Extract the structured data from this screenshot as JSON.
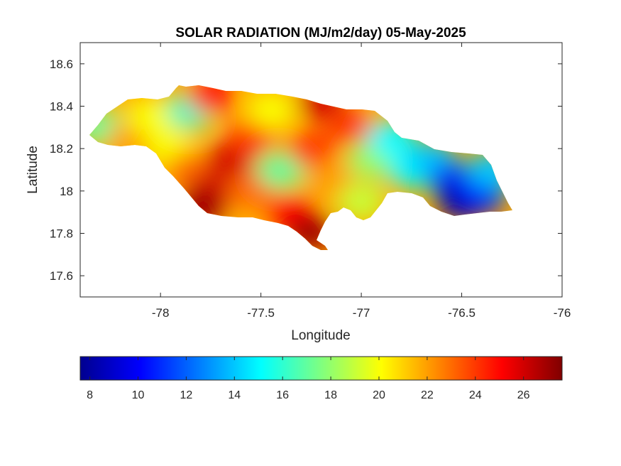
{
  "chart_data": {
    "type": "heatmap",
    "title": "SOLAR RADIATION (MJ/m2/day) 05-May-2025",
    "xlabel": "Longitude",
    "ylabel": "Latitude",
    "xlim": [
      -78.4,
      -76
    ],
    "ylim": [
      17.5,
      18.7
    ],
    "x_ticks": [
      -78,
      -77.5,
      -77,
      -76.5,
      -76
    ],
    "y_ticks": [
      17.6,
      17.8,
      18,
      18.2,
      18.4,
      18.6
    ],
    "x_tick_labels": [
      "-78",
      "-77.5",
      "-77",
      "-76.5",
      "-76"
    ],
    "y_tick_labels": [
      "17.6",
      "17.8",
      "18",
      "18.2",
      "18.4",
      "18.6"
    ],
    "colormap": "jet",
    "colorbar": {
      "orientation": "horizontal",
      "placement": "below",
      "range": [
        7.6,
        27.6
      ],
      "ticks": [
        8,
        10,
        12,
        14,
        16,
        18,
        20,
        22,
        24,
        26
      ],
      "tick_labels": [
        "8",
        "10",
        "12",
        "14",
        "16",
        "18",
        "20",
        "22",
        "24",
        "26"
      ],
      "stops": [
        "#00008f",
        "#0000ff",
        "#00ffff",
        "#ffff00",
        "#ff0000",
        "#800000"
      ]
    },
    "regions": [
      {
        "lon": -78.3,
        "lat": 18.3,
        "value": 17
      },
      {
        "lon": -78.15,
        "lat": 18.25,
        "value": 22
      },
      {
        "lon": -78.05,
        "lat": 18.35,
        "value": 20
      },
      {
        "lon": -77.95,
        "lat": 18.2,
        "value": 20
      },
      {
        "lon": -77.85,
        "lat": 18.1,
        "value": 23
      },
      {
        "lon": -77.85,
        "lat": 18.38,
        "value": 16
      },
      {
        "lon": -77.75,
        "lat": 18.45,
        "value": 25
      },
      {
        "lon": -77.75,
        "lat": 18.0,
        "value": 26
      },
      {
        "lon": -77.8,
        "lat": 17.92,
        "value": 27
      },
      {
        "lon": -77.65,
        "lat": 18.15,
        "value": 26
      },
      {
        "lon": -77.55,
        "lat": 18.25,
        "value": 24
      },
      {
        "lon": -77.55,
        "lat": 18.0,
        "value": 23
      },
      {
        "lon": -77.45,
        "lat": 18.38,
        "value": 20
      },
      {
        "lon": -77.4,
        "lat": 18.1,
        "value": 17
      },
      {
        "lon": -77.35,
        "lat": 17.9,
        "value": 25
      },
      {
        "lon": -77.25,
        "lat": 18.2,
        "value": 24
      },
      {
        "lon": -77.25,
        "lat": 17.8,
        "value": 27
      },
      {
        "lon": -77.2,
        "lat": 18.42,
        "value": 26
      },
      {
        "lon": -77.15,
        "lat": 18.05,
        "value": 22
      },
      {
        "lon": -77.05,
        "lat": 18.3,
        "value": 24
      },
      {
        "lon": -77.0,
        "lat": 17.95,
        "value": 19
      },
      {
        "lon": -76.95,
        "lat": 18.15,
        "value": 18
      },
      {
        "lon": -76.85,
        "lat": 18.25,
        "value": 15
      },
      {
        "lon": -76.75,
        "lat": 18.1,
        "value": 15
      },
      {
        "lon": -76.65,
        "lat": 18.15,
        "value": 14
      },
      {
        "lon": -76.55,
        "lat": 18.05,
        "value": 11
      },
      {
        "lon": -76.5,
        "lat": 17.95,
        "value": 8
      },
      {
        "lon": -76.4,
        "lat": 17.98,
        "value": 10
      },
      {
        "lon": -76.35,
        "lat": 18.1,
        "value": 14
      }
    ]
  }
}
